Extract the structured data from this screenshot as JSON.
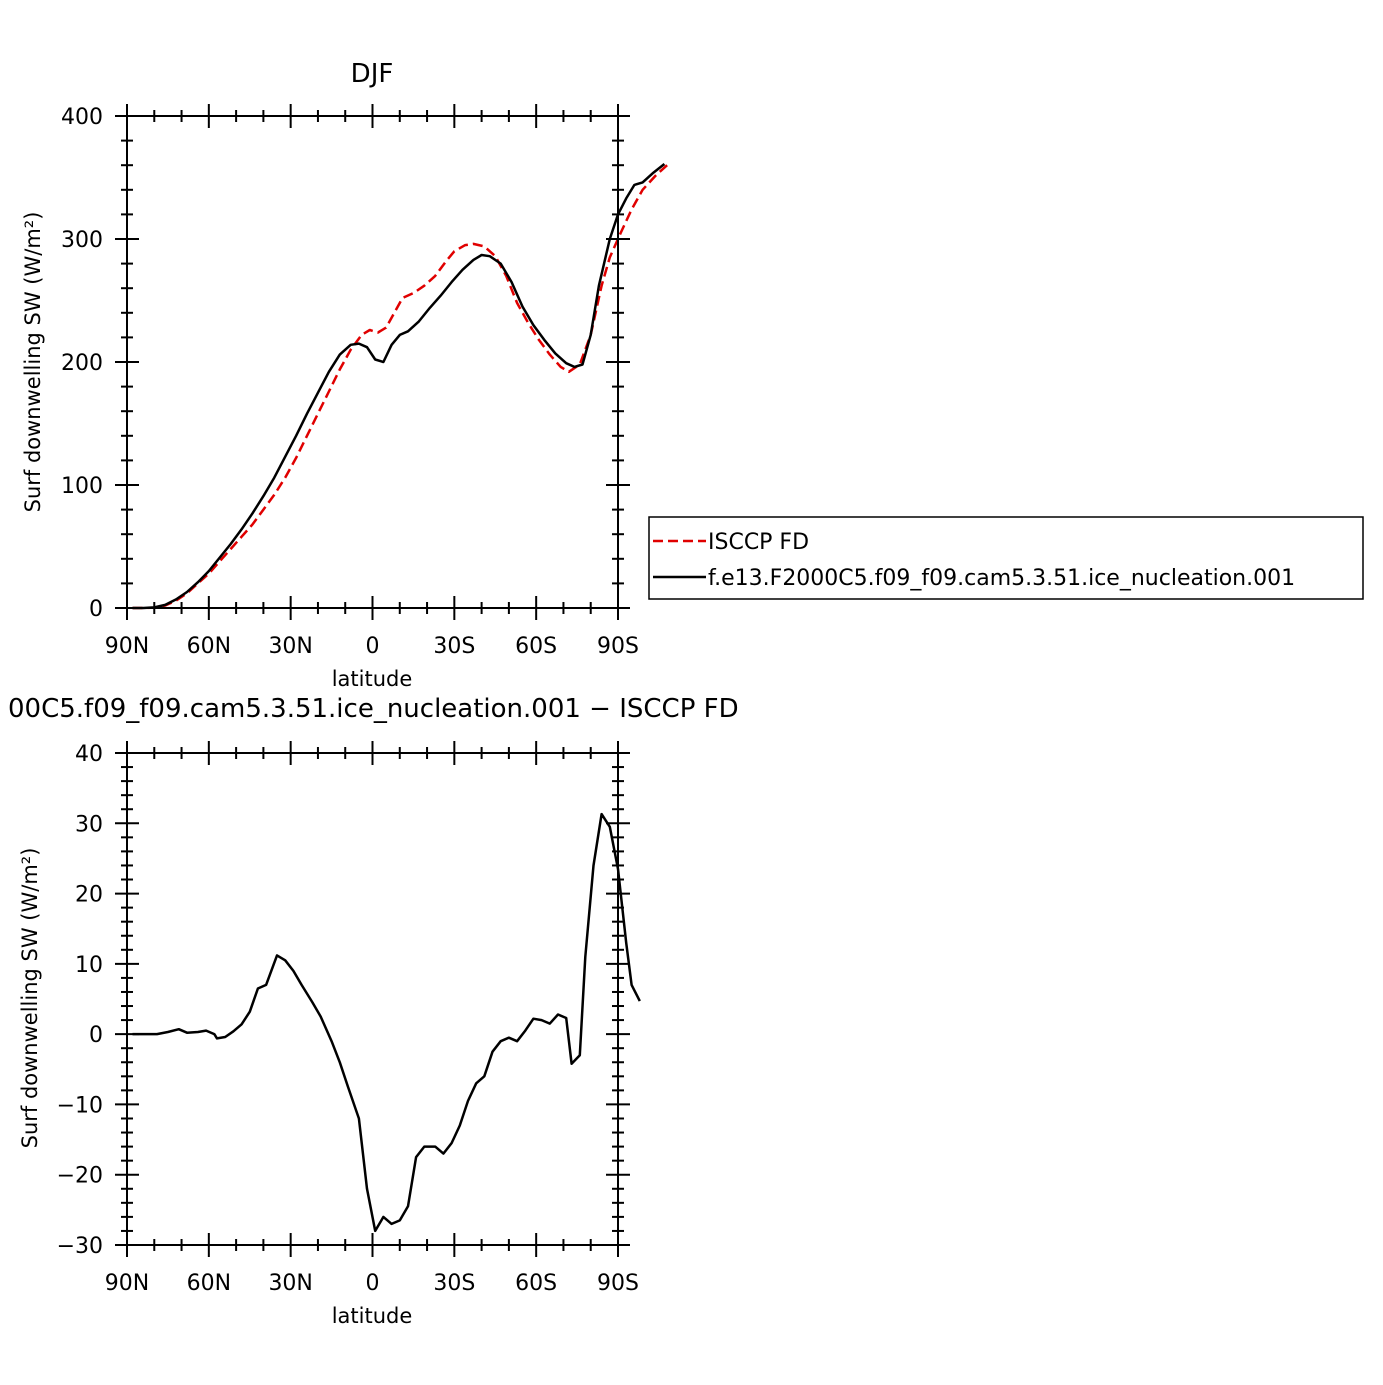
{
  "chart_data": [
    {
      "type": "line",
      "title": "DJF",
      "xlabel": "latitude",
      "ylabel": "Surf downwelling SW (W/m²)",
      "ylim": [
        0,
        400
      ],
      "xlim": [
        -90,
        90
      ],
      "x_ticks": [
        {
          "value": -90,
          "label": "90N"
        },
        {
          "value": -60,
          "label": "60N"
        },
        {
          "value": -30,
          "label": "30N"
        },
        {
          "value": 0,
          "label": "0"
        },
        {
          "value": 30,
          "label": "30S"
        },
        {
          "value": 60,
          "label": "60S"
        },
        {
          "value": 90,
          "label": "90S"
        }
      ],
      "y_ticks": [
        0,
        100,
        200,
        300,
        400
      ],
      "legend": {
        "placement": "right",
        "entries": [
          {
            "label": "ISCCP FD",
            "color": "#e00000",
            "dash": true
          },
          {
            "label": "f.e13.F2000C5.f09_f09.cam5.3.51.ice_nucleation.001",
            "color": "#000000",
            "dash": false
          }
        ]
      },
      "series": [
        {
          "name": "ISCCP FD",
          "color": "#e00000",
          "dash": true,
          "points": [
            [
              -88,
              0
            ],
            [
              -84,
              0
            ],
            [
              -80,
              0.3
            ],
            [
              -76,
              2
            ],
            [
              -72,
              6
            ],
            [
              -68,
              12
            ],
            [
              -64,
              20
            ],
            [
              -60,
              28
            ],
            [
              -56,
              38
            ],
            [
              -52,
              48
            ],
            [
              -48,
              58
            ],
            [
              -44,
              68
            ],
            [
              -40,
              80
            ],
            [
              -36,
              92
            ],
            [
              -32,
              106
            ],
            [
              -28,
              122
            ],
            [
              -24,
              140
            ],
            [
              -20,
              158
            ],
            [
              -16,
              176
            ],
            [
              -12,
              194
            ],
            [
              -8,
              210
            ],
            [
              -4,
              222
            ],
            [
              -1,
              226
            ],
            [
              2,
              224
            ],
            [
              5,
              228
            ],
            [
              8,
              240
            ],
            [
              11,
              252
            ],
            [
              15,
              256
            ],
            [
              19,
              262
            ],
            [
              23,
              270
            ],
            [
              27,
              282
            ],
            [
              30,
              290
            ],
            [
              34,
              295
            ],
            [
              37,
              296
            ],
            [
              41,
              294
            ],
            [
              45,
              286
            ],
            [
              49,
              270
            ],
            [
              53,
              248
            ],
            [
              57,
              232
            ],
            [
              61,
              218
            ],
            [
              65,
              206
            ],
            [
              69,
              196
            ],
            [
              72,
              192
            ],
            [
              76,
              198
            ],
            [
              80,
              222
            ],
            [
              84,
              262
            ],
            [
              87,
              285
            ],
            [
              91,
              305
            ],
            [
              95,
              324
            ],
            [
              99,
              340
            ],
            [
              104,
              352
            ],
            [
              108,
              360
            ]
          ]
        },
        {
          "name": "f.e13.F2000C5.f09_f09.cam5.3.51.ice_nucleation.001",
          "color": "#000000",
          "dash": false,
          "points": [
            [
              -88,
              0
            ],
            [
              -84,
              0
            ],
            [
              -80,
              0.5
            ],
            [
              -76,
              2.5
            ],
            [
              -72,
              7
            ],
            [
              -68,
              13
            ],
            [
              -64,
              21
            ],
            [
              -60,
              30
            ],
            [
              -56,
              41
            ],
            [
              -52,
              52
            ],
            [
              -48,
              64
            ],
            [
              -44,
              77
            ],
            [
              -40,
              91
            ],
            [
              -36,
              106
            ],
            [
              -32,
              123
            ],
            [
              -28,
              140
            ],
            [
              -24,
              158
            ],
            [
              -20,
              175
            ],
            [
              -16,
              192
            ],
            [
              -12,
              206
            ],
            [
              -8,
              214
            ],
            [
              -5,
              215
            ],
            [
              -2,
              212
            ],
            [
              1,
              202
            ],
            [
              4,
              200
            ],
            [
              7,
              214
            ],
            [
              10,
              222
            ],
            [
              13,
              225
            ],
            [
              17,
              233
            ],
            [
              21,
              244
            ],
            [
              25,
              254
            ],
            [
              29,
              265
            ],
            [
              33,
              275
            ],
            [
              37,
              283
            ],
            [
              40,
              287
            ],
            [
              43,
              286
            ],
            [
              47,
              280
            ],
            [
              51,
              265
            ],
            [
              55,
              245
            ],
            [
              59,
              230
            ],
            [
              63,
              218
            ],
            [
              67,
              207
            ],
            [
              71,
              199
            ],
            [
              74,
              196
            ],
            [
              77,
              198
            ],
            [
              80,
              222
            ],
            [
              83,
              262
            ],
            [
              87,
              300
            ],
            [
              90,
              320
            ],
            [
              93,
              333
            ],
            [
              96,
              344
            ],
            [
              99,
              346
            ],
            [
              103,
              354
            ],
            [
              107,
              361
            ]
          ]
        }
      ]
    },
    {
      "type": "line",
      "title": "00C5.f09_f09.cam5.3.51.ice_nucleation.001 − ISCCP FD",
      "xlabel": "latitude",
      "ylabel": "Surf downwelling SW (W/m²)",
      "ylim": [
        -30,
        40
      ],
      "xlim": [
        -90,
        90
      ],
      "x_ticks": [
        {
          "value": -90,
          "label": "90N"
        },
        {
          "value": -60,
          "label": "60N"
        },
        {
          "value": -30,
          "label": "30N"
        },
        {
          "value": 0,
          "label": "0"
        },
        {
          "value": 30,
          "label": "30S"
        },
        {
          "value": 60,
          "label": "60S"
        },
        {
          "value": 90,
          "label": "90S"
        }
      ],
      "y_ticks": [
        -30,
        -20,
        -10,
        0,
        10,
        20,
        30,
        40
      ],
      "series": [
        {
          "color": "#000000",
          "dash": false,
          "points": [
            [
              -88,
              0
            ],
            [
              -83,
              0
            ],
            [
              -79,
              0
            ],
            [
              -75,
              0.3
            ],
            [
              -71,
              0.7
            ],
            [
              -68,
              0.2
            ],
            [
              -64,
              0.3
            ],
            [
              -61,
              0.5
            ],
            [
              -58,
              0
            ],
            [
              -57,
              -0.6
            ],
            [
              -54,
              -0.4
            ],
            [
              -51,
              0.4
            ],
            [
              -48,
              1.4
            ],
            [
              -45,
              3.2
            ],
            [
              -42,
              6.5
            ],
            [
              -39,
              7
            ],
            [
              -35,
              11.2
            ],
            [
              -32,
              10.5
            ],
            [
              -29,
              9
            ],
            [
              -26,
              7
            ],
            [
              -22,
              4.5
            ],
            [
              -19,
              2.5
            ],
            [
              -15,
              -1
            ],
            [
              -12,
              -4
            ],
            [
              -9,
              -7.5
            ],
            [
              -5,
              -12
            ],
            [
              -2,
              -22
            ],
            [
              1,
              -28
            ],
            [
              4,
              -26
            ],
            [
              7,
              -27
            ],
            [
              10,
              -26.5
            ],
            [
              13,
              -24.5
            ],
            [
              16,
              -17.5
            ],
            [
              19,
              -16
            ],
            [
              23,
              -16
            ],
            [
              26,
              -17
            ],
            [
              29,
              -15.5
            ],
            [
              32,
              -13
            ],
            [
              35,
              -9.5
            ],
            [
              38,
              -7
            ],
            [
              41,
              -6
            ],
            [
              44,
              -2.5
            ],
            [
              47,
              -1
            ],
            [
              50,
              -0.5
            ],
            [
              53,
              -1
            ],
            [
              56,
              0.5
            ],
            [
              59,
              2.2
            ],
            [
              62,
              2
            ],
            [
              65,
              1.5
            ],
            [
              68,
              2.8
            ],
            [
              71,
              2.3
            ],
            [
              73,
              -4.2
            ],
            [
              76,
              -3
            ],
            [
              78,
              11
            ],
            [
              81,
              24
            ],
            [
              84,
              31.3
            ],
            [
              87,
              29.5
            ],
            [
              90,
              23.5
            ],
            [
              93,
              13
            ],
            [
              95,
              7
            ],
            [
              98,
              4.7
            ]
          ]
        }
      ]
    }
  ]
}
